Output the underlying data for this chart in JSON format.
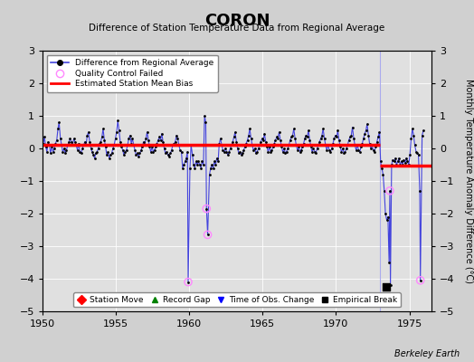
{
  "title": "CORON",
  "subtitle": "Difference of Station Temperature Data from Regional Average",
  "ylabel": "Monthly Temperature Anomaly Difference (°C)",
  "credit": "Berkeley Earth",
  "xlim": [
    1950,
    1976.5
  ],
  "ylim": [
    -5,
    3
  ],
  "yticks": [
    -5,
    -4,
    -3,
    -2,
    -1,
    0,
    1,
    2,
    3
  ],
  "xticks": [
    1950,
    1955,
    1960,
    1965,
    1970,
    1975
  ],
  "fig_bg_color": "#d0d0d0",
  "plot_bg_color": "#e0e0e0",
  "grid_color": "#ffffff",
  "line_color": "#4444dd",
  "dot_color": "#000000",
  "bias_color": "#ff0000",
  "qc_color": "#ff88ff",
  "empirical_break": [
    1973.42,
    -4.25
  ],
  "vertical_line_x": 1973.0,
  "qc_failed_points": [
    [
      1959.92,
      -4.1
    ],
    [
      1961.17,
      -1.85
    ],
    [
      1961.25,
      -2.65
    ],
    [
      1973.67,
      -1.3
    ],
    [
      1975.75,
      -4.05
    ]
  ],
  "bias_segments": [
    {
      "x": [
        1950.0,
        1973.0
      ],
      "y": [
        0.12,
        0.12
      ]
    },
    {
      "x": [
        1973.0,
        1976.5
      ],
      "y": [
        -0.52,
        -0.52
      ]
    }
  ],
  "data": [
    [
      1950.04,
      0.15
    ],
    [
      1950.12,
      0.35
    ],
    [
      1950.21,
      0.05
    ],
    [
      1950.29,
      -0.1
    ],
    [
      1950.37,
      0.2
    ],
    [
      1950.46,
      0.1
    ],
    [
      1950.54,
      -0.15
    ],
    [
      1950.62,
      0.05
    ],
    [
      1950.71,
      -0.1
    ],
    [
      1950.79,
      0.0
    ],
    [
      1950.87,
      0.15
    ],
    [
      1950.96,
      0.25
    ],
    [
      1951.04,
      0.6
    ],
    [
      1951.12,
      0.8
    ],
    [
      1951.21,
      0.3
    ],
    [
      1951.29,
      0.1
    ],
    [
      1951.37,
      -0.1
    ],
    [
      1951.46,
      0.0
    ],
    [
      1951.54,
      -0.15
    ],
    [
      1951.62,
      -0.05
    ],
    [
      1951.71,
      0.1
    ],
    [
      1951.79,
      0.2
    ],
    [
      1951.87,
      0.3
    ],
    [
      1951.96,
      0.2
    ],
    [
      1952.04,
      0.1
    ],
    [
      1952.12,
      0.3
    ],
    [
      1952.21,
      0.2
    ],
    [
      1952.29,
      0.1
    ],
    [
      1952.37,
      -0.05
    ],
    [
      1952.46,
      0.15
    ],
    [
      1952.54,
      -0.1
    ],
    [
      1952.62,
      -0.15
    ],
    [
      1952.71,
      0.0
    ],
    [
      1952.79,
      0.1
    ],
    [
      1952.87,
      0.2
    ],
    [
      1952.96,
      0.1
    ],
    [
      1953.04,
      0.4
    ],
    [
      1953.12,
      0.5
    ],
    [
      1953.21,
      0.2
    ],
    [
      1953.29,
      0.0
    ],
    [
      1953.37,
      -0.1
    ],
    [
      1953.46,
      -0.2
    ],
    [
      1953.54,
      -0.3
    ],
    [
      1953.62,
      -0.15
    ],
    [
      1953.71,
      -0.1
    ],
    [
      1953.79,
      0.0
    ],
    [
      1953.87,
      0.15
    ],
    [
      1953.96,
      0.2
    ],
    [
      1954.04,
      0.35
    ],
    [
      1954.12,
      0.6
    ],
    [
      1954.21,
      0.25
    ],
    [
      1954.29,
      0.05
    ],
    [
      1954.37,
      -0.2
    ],
    [
      1954.46,
      -0.1
    ],
    [
      1954.54,
      -0.3
    ],
    [
      1954.62,
      -0.2
    ],
    [
      1954.71,
      -0.15
    ],
    [
      1954.79,
      0.0
    ],
    [
      1954.87,
      0.1
    ],
    [
      1954.96,
      0.3
    ],
    [
      1955.04,
      0.5
    ],
    [
      1955.12,
      0.85
    ],
    [
      1955.21,
      0.55
    ],
    [
      1955.29,
      0.2
    ],
    [
      1955.37,
      0.05
    ],
    [
      1955.46,
      -0.05
    ],
    [
      1955.54,
      -0.2
    ],
    [
      1955.62,
      -0.1
    ],
    [
      1955.71,
      -0.05
    ],
    [
      1955.79,
      0.1
    ],
    [
      1955.87,
      0.3
    ],
    [
      1955.96,
      0.4
    ],
    [
      1956.04,
      0.15
    ],
    [
      1956.12,
      0.3
    ],
    [
      1956.21,
      0.1
    ],
    [
      1956.29,
      -0.05
    ],
    [
      1956.37,
      -0.2
    ],
    [
      1956.46,
      -0.15
    ],
    [
      1956.54,
      -0.25
    ],
    [
      1956.62,
      -0.15
    ],
    [
      1956.71,
      -0.05
    ],
    [
      1956.79,
      0.05
    ],
    [
      1956.87,
      0.2
    ],
    [
      1956.96,
      0.1
    ],
    [
      1957.04,
      0.3
    ],
    [
      1957.12,
      0.5
    ],
    [
      1957.21,
      0.25
    ],
    [
      1957.29,
      0.05
    ],
    [
      1957.37,
      -0.1
    ],
    [
      1957.46,
      0.05
    ],
    [
      1957.54,
      -0.1
    ],
    [
      1957.62,
      -0.05
    ],
    [
      1957.71,
      0.05
    ],
    [
      1957.79,
      0.15
    ],
    [
      1957.87,
      0.25
    ],
    [
      1957.96,
      0.35
    ],
    [
      1958.04,
      0.25
    ],
    [
      1958.12,
      0.45
    ],
    [
      1958.21,
      0.2
    ],
    [
      1958.29,
      0.0
    ],
    [
      1958.37,
      -0.15
    ],
    [
      1958.46,
      -0.1
    ],
    [
      1958.54,
      -0.2
    ],
    [
      1958.62,
      -0.25
    ],
    [
      1958.71,
      -0.15
    ],
    [
      1958.79,
      -0.05
    ],
    [
      1958.87,
      0.1
    ],
    [
      1958.96,
      0.15
    ],
    [
      1959.04,
      0.2
    ],
    [
      1959.12,
      0.4
    ],
    [
      1959.21,
      0.3
    ],
    [
      1959.29,
      0.1
    ],
    [
      1959.37,
      -0.05
    ],
    [
      1959.46,
      -0.1
    ],
    [
      1959.54,
      -0.6
    ],
    [
      1959.62,
      -0.5
    ],
    [
      1959.71,
      -0.4
    ],
    [
      1959.79,
      -0.3
    ],
    [
      1959.87,
      -0.1
    ],
    [
      1959.92,
      -4.1
    ],
    [
      1960.04,
      -0.6
    ],
    [
      1960.12,
      0.1
    ],
    [
      1960.21,
      -0.2
    ],
    [
      1960.29,
      -0.5
    ],
    [
      1960.37,
      -0.6
    ],
    [
      1960.46,
      -0.4
    ],
    [
      1960.54,
      -0.5
    ],
    [
      1960.62,
      -0.4
    ],
    [
      1960.71,
      -0.5
    ],
    [
      1960.79,
      -0.6
    ],
    [
      1960.87,
      -0.4
    ],
    [
      1960.96,
      -0.5
    ],
    [
      1961.04,
      1.0
    ],
    [
      1961.12,
      0.8
    ],
    [
      1961.17,
      -1.85
    ],
    [
      1961.25,
      -2.65
    ],
    [
      1961.37,
      -0.8
    ],
    [
      1961.46,
      -0.6
    ],
    [
      1961.54,
      -0.5
    ],
    [
      1961.62,
      -0.6
    ],
    [
      1961.71,
      -0.4
    ],
    [
      1961.79,
      -0.5
    ],
    [
      1961.87,
      -0.3
    ],
    [
      1961.96,
      -0.4
    ],
    [
      1962.04,
      0.15
    ],
    [
      1962.12,
      0.3
    ],
    [
      1962.21,
      0.1
    ],
    [
      1962.29,
      -0.05
    ],
    [
      1962.37,
      -0.1
    ],
    [
      1962.46,
      0.0
    ],
    [
      1962.54,
      -0.1
    ],
    [
      1962.62,
      -0.2
    ],
    [
      1962.71,
      -0.1
    ],
    [
      1962.79,
      0.0
    ],
    [
      1962.87,
      0.1
    ],
    [
      1962.96,
      0.2
    ],
    [
      1963.04,
      0.35
    ],
    [
      1963.12,
      0.5
    ],
    [
      1963.21,
      0.2
    ],
    [
      1963.29,
      0.0
    ],
    [
      1963.37,
      -0.15
    ],
    [
      1963.46,
      -0.1
    ],
    [
      1963.54,
      -0.2
    ],
    [
      1963.62,
      -0.15
    ],
    [
      1963.71,
      -0.05
    ],
    [
      1963.79,
      0.05
    ],
    [
      1963.87,
      0.15
    ],
    [
      1963.96,
      0.25
    ],
    [
      1964.04,
      0.4
    ],
    [
      1964.12,
      0.6
    ],
    [
      1964.21,
      0.3
    ],
    [
      1964.29,
      0.1
    ],
    [
      1964.37,
      -0.05
    ],
    [
      1964.46,
      0.0
    ],
    [
      1964.54,
      -0.15
    ],
    [
      1964.62,
      -0.1
    ],
    [
      1964.71,
      0.0
    ],
    [
      1964.79,
      0.1
    ],
    [
      1964.87,
      0.2
    ],
    [
      1964.96,
      0.3
    ],
    [
      1965.04,
      0.25
    ],
    [
      1965.12,
      0.45
    ],
    [
      1965.21,
      0.2
    ],
    [
      1965.29,
      0.05
    ],
    [
      1965.37,
      -0.1
    ],
    [
      1965.46,
      0.05
    ],
    [
      1965.54,
      -0.1
    ],
    [
      1965.62,
      -0.05
    ],
    [
      1965.71,
      0.05
    ],
    [
      1965.79,
      0.15
    ],
    [
      1965.87,
      0.25
    ],
    [
      1965.96,
      0.35
    ],
    [
      1966.04,
      0.3
    ],
    [
      1966.12,
      0.5
    ],
    [
      1966.21,
      0.25
    ],
    [
      1966.29,
      0.05
    ],
    [
      1966.37,
      -0.1
    ],
    [
      1966.46,
      0.0
    ],
    [
      1966.54,
      -0.15
    ],
    [
      1966.62,
      -0.1
    ],
    [
      1966.71,
      0.0
    ],
    [
      1966.79,
      0.1
    ],
    [
      1966.87,
      0.25
    ],
    [
      1966.96,
      0.35
    ],
    [
      1967.04,
      0.4
    ],
    [
      1967.12,
      0.6
    ],
    [
      1967.21,
      0.3
    ],
    [
      1967.29,
      0.1
    ],
    [
      1967.37,
      -0.05
    ],
    [
      1967.46,
      0.05
    ],
    [
      1967.54,
      -0.1
    ],
    [
      1967.62,
      -0.05
    ],
    [
      1967.71,
      0.05
    ],
    [
      1967.79,
      0.15
    ],
    [
      1967.87,
      0.3
    ],
    [
      1967.96,
      0.4
    ],
    [
      1968.04,
      0.35
    ],
    [
      1968.12,
      0.55
    ],
    [
      1968.21,
      0.25
    ],
    [
      1968.29,
      0.05
    ],
    [
      1968.37,
      -0.1
    ],
    [
      1968.46,
      0.0
    ],
    [
      1968.54,
      -0.1
    ],
    [
      1968.62,
      -0.15
    ],
    [
      1968.71,
      0.0
    ],
    [
      1968.79,
      0.1
    ],
    [
      1968.87,
      0.2
    ],
    [
      1968.96,
      0.3
    ],
    [
      1969.04,
      0.4
    ],
    [
      1969.12,
      0.6
    ],
    [
      1969.21,
      0.3
    ],
    [
      1969.29,
      0.1
    ],
    [
      1969.37,
      -0.05
    ],
    [
      1969.46,
      0.1
    ],
    [
      1969.54,
      -0.05
    ],
    [
      1969.62,
      -0.1
    ],
    [
      1969.71,
      0.0
    ],
    [
      1969.79,
      0.15
    ],
    [
      1969.87,
      0.3
    ],
    [
      1969.96,
      0.4
    ],
    [
      1970.04,
      0.35
    ],
    [
      1970.12,
      0.55
    ],
    [
      1970.21,
      0.25
    ],
    [
      1970.29,
      0.05
    ],
    [
      1970.37,
      -0.1
    ],
    [
      1970.46,
      0.0
    ],
    [
      1970.54,
      -0.15
    ],
    [
      1970.62,
      -0.1
    ],
    [
      1970.71,
      0.0
    ],
    [
      1970.79,
      0.1
    ],
    [
      1970.87,
      0.25
    ],
    [
      1970.96,
      0.35
    ],
    [
      1971.04,
      0.4
    ],
    [
      1971.12,
      0.65
    ],
    [
      1971.21,
      0.3
    ],
    [
      1971.29,
      0.1
    ],
    [
      1971.37,
      -0.05
    ],
    [
      1971.46,
      0.1
    ],
    [
      1971.54,
      -0.05
    ],
    [
      1971.62,
      -0.1
    ],
    [
      1971.71,
      0.05
    ],
    [
      1971.79,
      0.15
    ],
    [
      1971.87,
      0.3
    ],
    [
      1971.96,
      0.45
    ],
    [
      1972.04,
      0.55
    ],
    [
      1972.12,
      0.75
    ],
    [
      1972.21,
      0.4
    ],
    [
      1972.29,
      0.15
    ],
    [
      1972.37,
      0.0
    ],
    [
      1972.46,
      0.1
    ],
    [
      1972.54,
      -0.05
    ],
    [
      1972.62,
      -0.1
    ],
    [
      1972.71,
      0.05
    ],
    [
      1972.79,
      0.2
    ],
    [
      1972.87,
      0.35
    ],
    [
      1972.96,
      0.5
    ],
    [
      1973.04,
      -0.4
    ],
    [
      1973.12,
      -0.6
    ],
    [
      1973.21,
      -0.8
    ],
    [
      1973.29,
      -1.3
    ],
    [
      1973.37,
      -2.0
    ],
    [
      1973.46,
      -2.2
    ],
    [
      1973.54,
      -2.1
    ],
    [
      1973.62,
      -3.5
    ],
    [
      1973.67,
      -1.3
    ],
    [
      1973.71,
      -4.2
    ],
    [
      1973.79,
      -0.5
    ],
    [
      1973.87,
      -0.35
    ],
    [
      1973.96,
      -0.4
    ],
    [
      1974.04,
      -0.3
    ],
    [
      1974.12,
      -0.5
    ],
    [
      1974.21,
      -0.4
    ],
    [
      1974.29,
      -0.3
    ],
    [
      1974.37,
      -0.5
    ],
    [
      1974.46,
      -0.4
    ],
    [
      1974.54,
      -0.5
    ],
    [
      1974.62,
      -0.35
    ],
    [
      1974.71,
      -0.45
    ],
    [
      1974.79,
      -0.3
    ],
    [
      1974.87,
      -0.4
    ],
    [
      1974.96,
      -0.5
    ],
    [
      1975.04,
      -0.2
    ],
    [
      1975.12,
      0.3
    ],
    [
      1975.21,
      0.6
    ],
    [
      1975.29,
      0.4
    ],
    [
      1975.37,
      0.1
    ],
    [
      1975.46,
      -0.1
    ],
    [
      1975.54,
      -0.15
    ],
    [
      1975.62,
      -0.2
    ],
    [
      1975.71,
      -1.3
    ],
    [
      1975.75,
      -4.05
    ],
    [
      1975.87,
      0.4
    ],
    [
      1975.96,
      0.55
    ]
  ]
}
